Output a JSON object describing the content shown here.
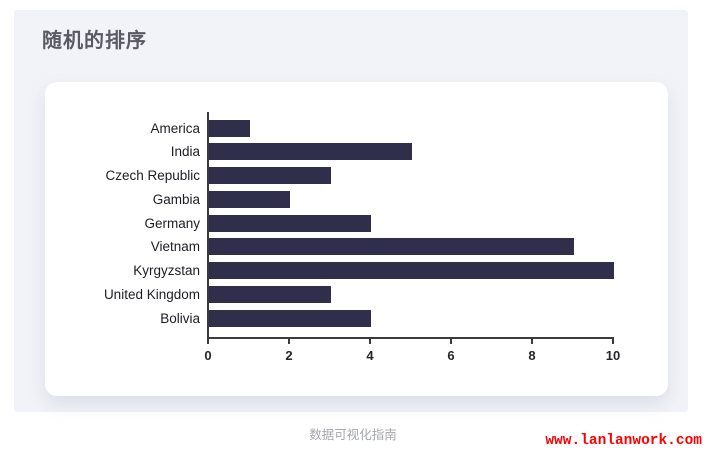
{
  "page": {
    "title": "随机的排序",
    "footer_caption": "数据可视化指南",
    "watermark": "www.lanlanwork.com"
  },
  "colors": {
    "panel_bg": "#f2f3f8",
    "card_bg": "#ffffff",
    "bar": "#2f2f4b",
    "axis": "#3a3a3f",
    "title_text": "#595b63",
    "watermark_red": "#ff0000"
  },
  "chart_data": {
    "type": "bar",
    "orientation": "horizontal",
    "title": "随机的排序",
    "categories": [
      "America",
      "India",
      "Czech Republic",
      "Gambia",
      "Germany",
      "Vietnam",
      "Kyrgyzstan",
      "United Kingdom",
      "Bolivia"
    ],
    "values": [
      1,
      5,
      3,
      2,
      4,
      9,
      10,
      3,
      4
    ],
    "xlabel": "",
    "ylabel": "",
    "xlim": [
      0,
      10
    ],
    "xticks": [
      0,
      2,
      4,
      6,
      8,
      10
    ],
    "grid": false,
    "legend": false,
    "bar_color": "#2f2f4b"
  }
}
